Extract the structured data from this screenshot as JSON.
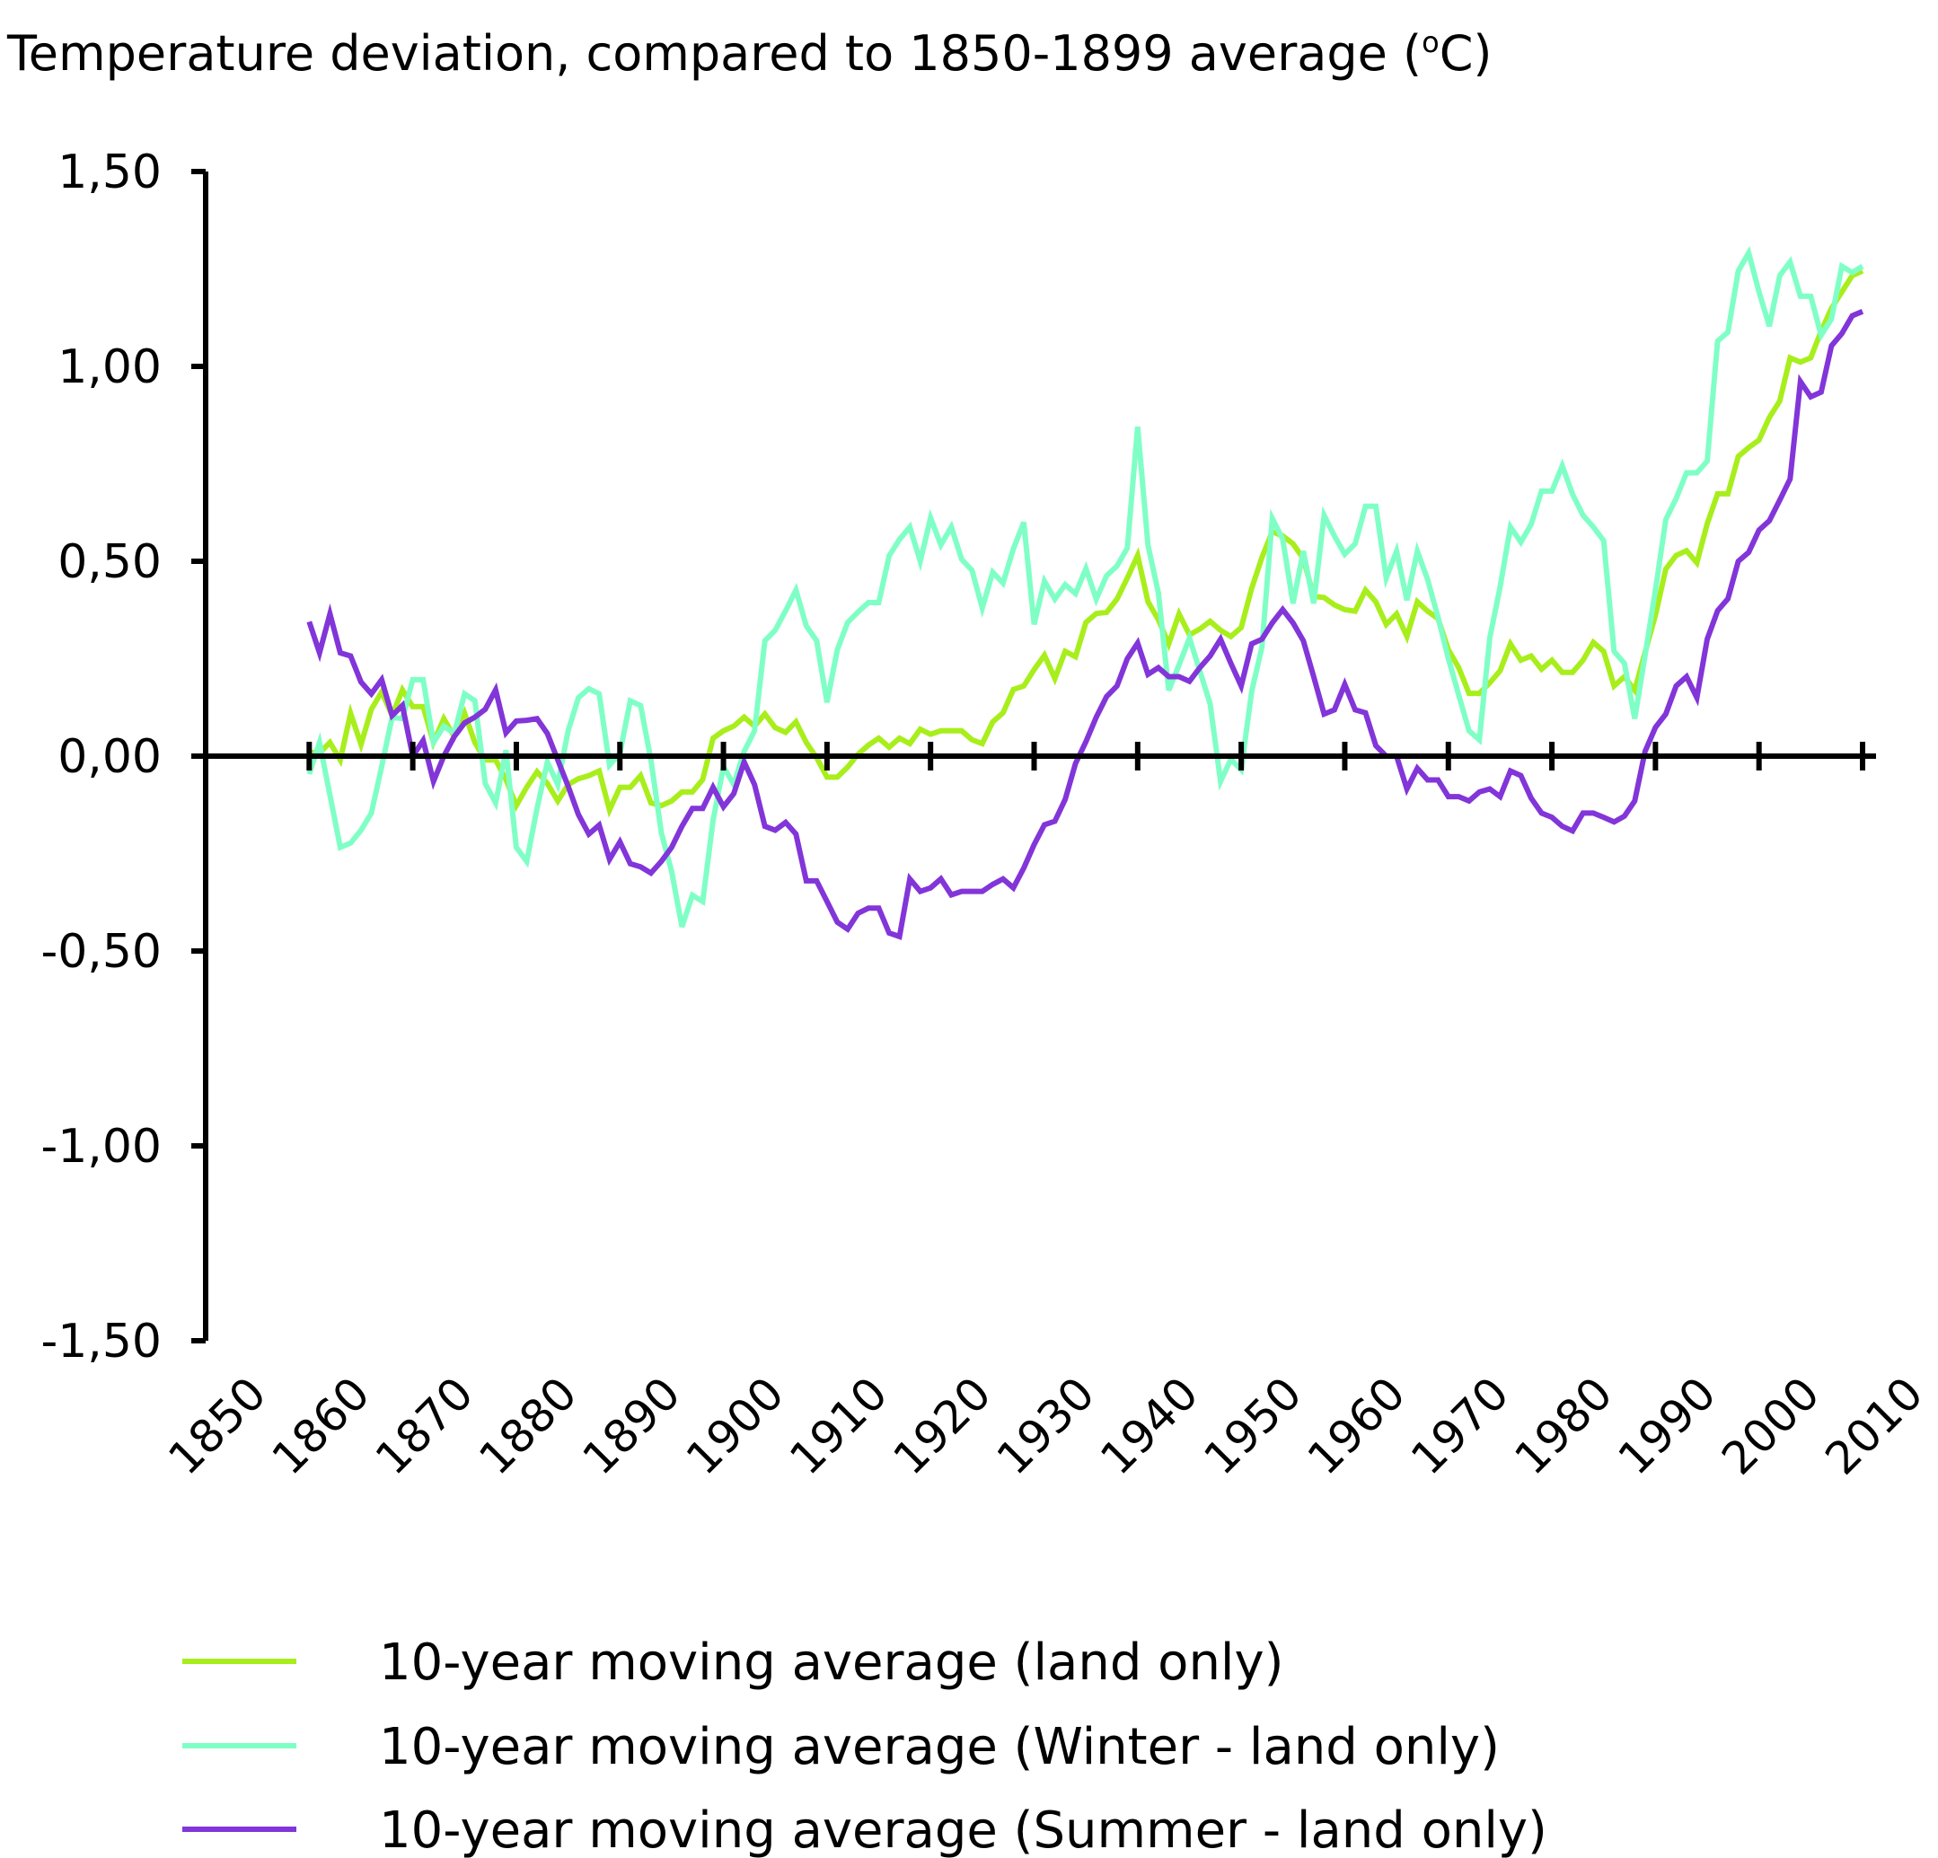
{
  "chart_data": {
    "type": "line",
    "title": {
      "main": "Temperature deviation, compared to 1850-1899 average (",
      "superscript": "o",
      "suffix": "C)"
    },
    "xlabel": "",
    "ylabel": "",
    "xlim": [
      1850,
      2010
    ],
    "ylim": [
      -1.5,
      1.5
    ],
    "x_ticks": [
      "1850",
      "1860",
      "1870",
      "1880",
      "1890",
      "1900",
      "1910",
      "1920",
      "1930",
      "1940",
      "1950",
      "1960",
      "1970",
      "1980",
      "1990",
      "2000",
      "2010"
    ],
    "x_tick_values": [
      1850,
      1860,
      1870,
      1880,
      1890,
      1900,
      1910,
      1920,
      1930,
      1940,
      1950,
      1960,
      1970,
      1980,
      1990,
      2000,
      2010
    ],
    "y_ticks": [
      "1,50",
      "1,00",
      "0,50",
      "0,00",
      "-0,50",
      "-1,00",
      "-1,50"
    ],
    "y_tick_values": [
      1.5,
      1.0,
      0.5,
      0.0,
      -0.5,
      -1.0,
      -1.5
    ],
    "grid": false,
    "legend_position": "bottom",
    "x_start": 1860,
    "series": [
      {
        "name": "10-year moving average (land only)",
        "color": "#A8EE1C",
        "values": [
          0.01,
          0.008,
          0.035,
          -0.01,
          0.11,
          0.03,
          0.12,
          0.165,
          0.104,
          0.17,
          0.127,
          0.127,
          0.035,
          0.096,
          0.05,
          0.11,
          0.035,
          -0.01,
          -0.01,
          -0.06,
          -0.127,
          -0.08,
          -0.04,
          -0.07,
          -0.115,
          -0.073,
          -0.058,
          -0.05,
          -0.038,
          -0.138,
          -0.08,
          -0.08,
          -0.05,
          -0.12,
          -0.127,
          -0.115,
          -0.092,
          -0.092,
          -0.06,
          0.046,
          0.065,
          0.077,
          0.1,
          0.077,
          0.108,
          0.073,
          0.061,
          0.088,
          0.035,
          -0.004,
          -0.054,
          -0.054,
          -0.028,
          0.005,
          0.028,
          0.046,
          0.023,
          0.046,
          0.032,
          0.069,
          0.056,
          0.065,
          0.065,
          0.065,
          0.042,
          0.032,
          0.088,
          0.111,
          0.171,
          0.18,
          0.222,
          0.259,
          0.199,
          0.269,
          0.255,
          0.343,
          0.366,
          0.369,
          0.403,
          0.457,
          0.515,
          0.396,
          0.35,
          0.288,
          0.365,
          0.311,
          0.326,
          0.346,
          0.323,
          0.307,
          0.33,
          0.43,
          0.51,
          0.576,
          0.565,
          0.545,
          0.507,
          0.41,
          0.407,
          0.388,
          0.376,
          0.372,
          0.426,
          0.396,
          0.338,
          0.365,
          0.307,
          0.396,
          0.372,
          0.353,
          0.273,
          0.227,
          0.161,
          0.161,
          0.188,
          0.219,
          0.288,
          0.246,
          0.257,
          0.223,
          0.246,
          0.215,
          0.215,
          0.246,
          0.292,
          0.269,
          0.18,
          0.204,
          0.169,
          0.266,
          0.362,
          0.48,
          0.515,
          0.527,
          0.496,
          0.596,
          0.673,
          0.673,
          0.769,
          0.792,
          0.811,
          0.869,
          0.911,
          1.022,
          1.011,
          1.022,
          1.091,
          1.149,
          1.191,
          1.233,
          1.245
        ]
      },
      {
        "name": "10-year moving average (Winter - land only)",
        "color": "#7FFFC6",
        "values": [
          -0.046,
          0.035,
          -0.1,
          -0.234,
          -0.223,
          -0.19,
          -0.146,
          -0.027,
          0.1,
          0.096,
          0.196,
          0.196,
          0.035,
          0.077,
          0.058,
          0.16,
          0.142,
          -0.07,
          -0.12,
          0.015,
          -0.234,
          -0.27,
          -0.134,
          -0.015,
          -0.073,
          0.065,
          0.15,
          0.173,
          0.16,
          -0.023,
          0.008,
          0.142,
          0.13,
          -0.01,
          -0.196,
          -0.296,
          -0.438,
          -0.357,
          -0.373,
          -0.165,
          -0.027,
          -0.073,
          0.012,
          0.065,
          0.296,
          0.323,
          0.373,
          0.426,
          0.334,
          0.296,
          0.138,
          0.273,
          0.343,
          0.37,
          0.394,
          0.394,
          0.514,
          0.556,
          0.588,
          0.5,
          0.611,
          0.542,
          0.588,
          0.505,
          0.477,
          0.38,
          0.472,
          0.444,
          0.532,
          0.6,
          0.338,
          0.449,
          0.403,
          0.44,
          0.417,
          0.481,
          0.403,
          0.463,
          0.488,
          0.534,
          0.845,
          0.541,
          0.419,
          0.169,
          0.234,
          0.303,
          0.219,
          0.134,
          -0.065,
          -0.008,
          -0.035,
          0.165,
          0.28,
          0.61,
          0.557,
          0.392,
          0.526,
          0.392,
          0.618,
          0.565,
          0.518,
          0.545,
          0.641,
          0.641,
          0.457,
          0.526,
          0.4,
          0.526,
          0.453,
          0.357,
          0.25,
          0.157,
          0.065,
          0.042,
          0.303,
          0.434,
          0.588,
          0.549,
          0.595,
          0.68,
          0.68,
          0.745,
          0.672,
          0.618,
          0.588,
          0.553,
          0.269,
          0.238,
          0.096,
          0.258,
          0.427,
          0.607,
          0.661,
          0.727,
          0.727,
          0.757,
          1.065,
          1.088,
          1.245,
          1.291,
          1.191,
          1.103,
          1.233,
          1.268,
          1.18,
          1.18,
          1.08,
          1.122,
          1.257,
          1.241,
          1.257
        ]
      },
      {
        "name": "10-year moving average (Summer - land only)",
        "color": "#8235D8",
        "values": [
          0.345,
          0.265,
          0.365,
          0.265,
          0.257,
          0.19,
          0.16,
          0.196,
          0.104,
          0.13,
          0.0,
          0.04,
          -0.065,
          0.0,
          0.05,
          0.085,
          0.1,
          0.12,
          0.17,
          0.06,
          0.09,
          0.092,
          0.096,
          0.058,
          -0.01,
          -0.077,
          -0.15,
          -0.2,
          -0.177,
          -0.265,
          -0.22,
          -0.276,
          -0.284,
          -0.3,
          -0.27,
          -0.234,
          -0.18,
          -0.134,
          -0.134,
          -0.08,
          -0.13,
          -0.096,
          -0.015,
          -0.073,
          -0.18,
          -0.19,
          -0.17,
          -0.2,
          -0.32,
          -0.32,
          -0.373,
          -0.426,
          -0.444,
          -0.403,
          -0.39,
          -0.39,
          -0.454,
          -0.463,
          -0.315,
          -0.347,
          -0.338,
          -0.315,
          -0.356,
          -0.347,
          -0.347,
          -0.347,
          -0.329,
          -0.315,
          -0.338,
          -0.287,
          -0.227,
          -0.176,
          -0.167,
          -0.111,
          -0.019,
          0.037,
          0.1,
          0.153,
          0.18,
          0.25,
          0.29,
          0.21,
          0.227,
          0.204,
          0.204,
          0.192,
          0.227,
          0.257,
          0.3,
          0.238,
          0.18,
          0.288,
          0.3,
          0.342,
          0.376,
          0.342,
          0.296,
          0.204,
          0.108,
          0.119,
          0.184,
          0.119,
          0.111,
          0.027,
          0.0,
          0.0,
          -0.084,
          -0.031,
          -0.061,
          -0.061,
          -0.104,
          -0.104,
          -0.115,
          -0.092,
          -0.084,
          -0.104,
          -0.038,
          -0.05,
          -0.108,
          -0.146,
          -0.157,
          -0.18,
          -0.192,
          -0.146,
          -0.146,
          -0.157,
          -0.169,
          -0.154,
          -0.115,
          0.012,
          0.074,
          0.108,
          0.18,
          0.204,
          0.15,
          0.3,
          0.373,
          0.404,
          0.5,
          0.523,
          0.58,
          0.604,
          0.657,
          0.711,
          0.961,
          0.922,
          0.934,
          1.053,
          1.084,
          1.13,
          1.141
        ]
      }
    ]
  }
}
